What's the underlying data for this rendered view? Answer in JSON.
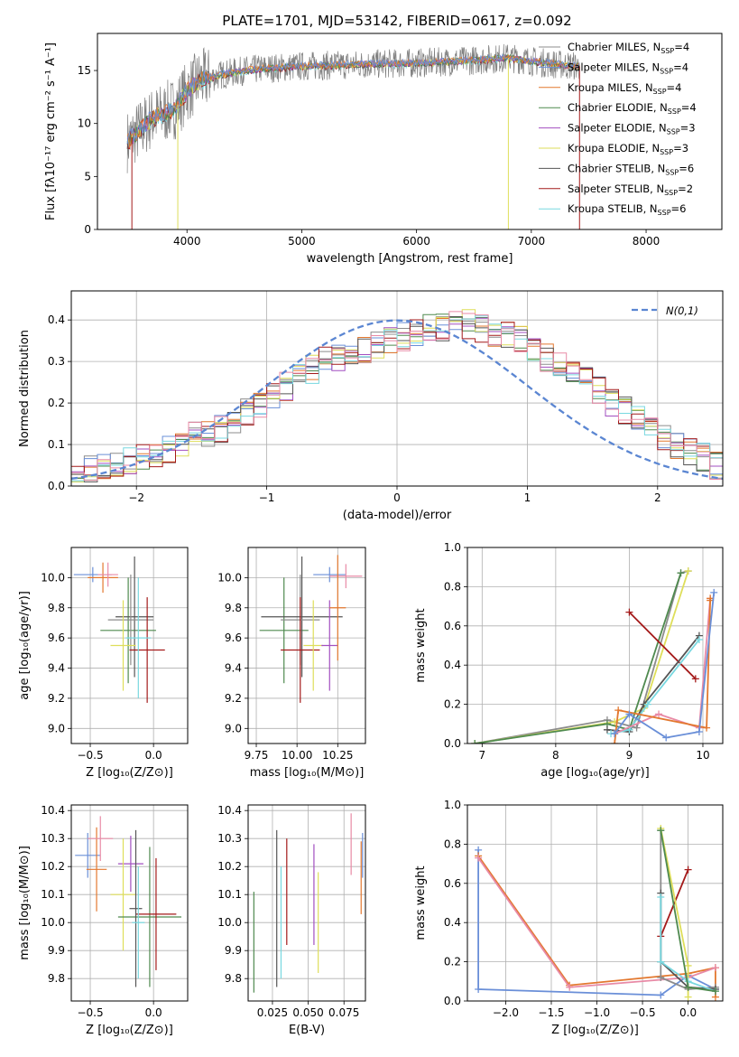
{
  "title": "PLATE=1701, MJD=53142, FIBERID=0617, z=0.092",
  "colors": {
    "chabrier_miles": "#8c8c8c",
    "salpeter_miles": "#6a8fd8",
    "kroupa_miles": "#e3782f",
    "chabrier_elodie": "#4f8a4f",
    "salpeter_elodie": "#a24fc0",
    "kroupa_elodie": "#dede5a",
    "chabrier_stelib": "#555555",
    "salpeter_stelib": "#a41a1a",
    "kroupa_stelib": "#78d8e0",
    "gauss": "#5b86d2",
    "extra_pink": "#e88aa6",
    "extra_lightgreen": "#8fd46a"
  },
  "chart_data": [
    {
      "type": "line",
      "name": "spectrum",
      "xlabel": "wavelength [Angstrom, rest frame]",
      "ylabel": "Flux [fλ10⁻¹⁷ erg cm⁻² s⁻¹ A⁻¹]",
      "xlim": [
        3220,
        8660
      ],
      "ylim": [
        0,
        18.5
      ],
      "xticks": [
        4000,
        5000,
        6000,
        7000,
        8000
      ],
      "yticks": [
        0,
        5,
        10,
        15
      ],
      "grid": false,
      "legend": "upper-right",
      "legend_entries": [
        {
          "label": "Chabrier MILES, N",
          "sub": "SSP",
          "suffix": "=4",
          "color": "chabrier_miles"
        },
        {
          "label": "Salpeter MILES, N",
          "sub": "SSP",
          "suffix": "=4",
          "color": "salpeter_miles"
        },
        {
          "label": "Kroupa MILES, N",
          "sub": "SSP",
          "suffix": "=4",
          "color": "kroupa_miles"
        },
        {
          "label": "Chabrier ELODIE, N",
          "sub": "SSP",
          "suffix": "=4",
          "color": "chabrier_elodie"
        },
        {
          "label": "Salpeter ELODIE, N",
          "sub": "SSP",
          "suffix": "=3",
          "color": "salpeter_elodie"
        },
        {
          "label": "Kroupa ELODIE, N",
          "sub": "SSP",
          "suffix": "=3",
          "color": "kroupa_elodie"
        },
        {
          "label": "Chabrier STELIB, N",
          "sub": "SSP",
          "suffix": "=6",
          "color": "chabrier_stelib"
        },
        {
          "label": "Salpeter STELIB, N",
          "sub": "SSP",
          "suffix": "=2",
          "color": "salpeter_stelib"
        },
        {
          "label": "Kroupa STELIB, N",
          "sub": "SSP",
          "suffix": "=6",
          "color": "kroupa_stelib"
        }
      ],
      "continuum_x": [
        3500,
        3700,
        3900,
        4000,
        4100,
        4300,
        4500,
        4700,
        5000,
        5300,
        5600,
        6000,
        6400,
        6800,
        7200,
        7420
      ],
      "continuum_y": [
        8.5,
        10.5,
        11.5,
        13.0,
        14.0,
        14.6,
        15.0,
        15.2,
        15.4,
        15.5,
        15.6,
        15.7,
        15.9,
        16.2,
        15.6,
        15.4
      ]
    },
    {
      "type": "histogram",
      "name": "residuals",
      "xlabel": "(data-model)/error",
      "ylabel": "Normed distribution",
      "xlim": [
        -2.5,
        2.5
      ],
      "ylim": [
        0,
        0.47
      ],
      "xticks": [
        -2,
        -1,
        0,
        1,
        2
      ],
      "yticks": [
        0.0,
        0.1,
        0.2,
        0.3,
        0.4
      ],
      "grid": true,
      "legend": "upper-right",
      "gauss_label": "N(0,1)",
      "bin_width": 0.1,
      "base": [
        0.03,
        0.04,
        0.045,
        0.05,
        0.06,
        0.07,
        0.08,
        0.09,
        0.1,
        0.12,
        0.13,
        0.14,
        0.16,
        0.18,
        0.2,
        0.22,
        0.24,
        0.26,
        0.28,
        0.3,
        0.31,
        0.32,
        0.33,
        0.34,
        0.35,
        0.36,
        0.37,
        0.38,
        0.38,
        0.39,
        0.39,
        0.38,
        0.37,
        0.36,
        0.35,
        0.33,
        0.31,
        0.29,
        0.27,
        0.25,
        0.23,
        0.2,
        0.18,
        0.16,
        0.14,
        0.12,
        0.1,
        0.08,
        0.07,
        0.05,
        0.04
      ]
    },
    {
      "type": "scatter",
      "name": "age-vs-metallicity",
      "xlabel": "Z [log₁₀(Z/Z⊙)]",
      "ylabel": "age  [log₁₀(age/yr)]",
      "xlim": [
        -0.65,
        0.27
      ],
      "ylim": [
        8.9,
        10.2
      ],
      "xticks": [
        -0.5,
        0.0
      ],
      "yticks": [
        9.0,
        9.2,
        9.4,
        9.6,
        9.8,
        10.0
      ],
      "grid": true,
      "points": [
        {
          "x": -0.48,
          "y": 10.02,
          "ex": 0.15,
          "ey": 0.05,
          "c": "salpeter_miles"
        },
        {
          "x": -0.4,
          "y": 10.0,
          "ex": 0.12,
          "ey": 0.1,
          "c": "kroupa_miles"
        },
        {
          "x": -0.36,
          "y": 10.02,
          "ex": 0.08,
          "ey": 0.08,
          "c": "extra_pink"
        },
        {
          "x": -0.2,
          "y": 9.65,
          "ex": 0.22,
          "ey": 0.35,
          "c": "chabrier_elodie"
        },
        {
          "x": -0.15,
          "y": 9.74,
          "ex": 0.15,
          "ey": 0.4,
          "c": "chabrier_stelib"
        },
        {
          "x": -0.18,
          "y": 9.72,
          "ex": 0.18,
          "ey": 0.3,
          "c": "chabrier_miles"
        },
        {
          "x": -0.05,
          "y": 9.52,
          "ex": 0.14,
          "ey": 0.35,
          "c": "salpeter_stelib"
        },
        {
          "x": -0.24,
          "y": 9.55,
          "ex": 0.1,
          "ey": 0.3,
          "c": "kroupa_elodie"
        },
        {
          "x": -0.12,
          "y": 9.6,
          "ex": 0.1,
          "ey": 0.4,
          "c": "kroupa_stelib"
        }
      ]
    },
    {
      "type": "scatter",
      "name": "age-vs-mass",
      "xlabel": "mass [log₁₀(M/M⊙)]",
      "ylabel": "",
      "xlim": [
        9.7,
        10.42
      ],
      "ylim": [
        8.9,
        10.2
      ],
      "xticks": [
        9.75,
        10.0,
        10.25
      ],
      "yticks": [
        9.0,
        9.2,
        9.4,
        9.6,
        9.8,
        10.0
      ],
      "grid": true,
      "points": [
        {
          "x": 10.2,
          "y": 10.02,
          "ex": 0.1,
          "ey": 0.05,
          "c": "salpeter_miles"
        },
        {
          "x": 10.3,
          "y": 10.01,
          "ex": 0.1,
          "ey": 0.08,
          "c": "extra_pink"
        },
        {
          "x": 9.92,
          "y": 9.65,
          "ex": 0.15,
          "ey": 0.35,
          "c": "chabrier_elodie"
        },
        {
          "x": 10.03,
          "y": 9.74,
          "ex": 0.25,
          "ey": 0.4,
          "c": "chabrier_stelib"
        },
        {
          "x": 10.02,
          "y": 9.72,
          "ex": 0.12,
          "ey": 0.3,
          "c": "chabrier_miles"
        },
        {
          "x": 10.02,
          "y": 9.52,
          "ex": 0.12,
          "ey": 0.35,
          "c": "salpeter_stelib"
        },
        {
          "x": 10.1,
          "y": 9.55,
          "ex": 0.06,
          "ey": 0.3,
          "c": "kroupa_elodie"
        },
        {
          "x": 10.2,
          "y": 9.55,
          "ex": 0.05,
          "ey": 0.3,
          "c": "salpeter_elodie"
        },
        {
          "x": 10.25,
          "y": 9.8,
          "ex": 0.05,
          "ey": 0.35,
          "c": "kroupa_miles"
        }
      ]
    },
    {
      "type": "line",
      "name": "mass-weight-vs-age",
      "xlabel": "age  [log₁₀(age/yr)]",
      "ylabel": "mass weight",
      "xlim": [
        6.8,
        10.27
      ],
      "ylim": [
        0,
        1.0
      ],
      "xticks": [
        7,
        8,
        9,
        10
      ],
      "yticks": [
        0.0,
        0.2,
        0.4,
        0.6,
        0.8,
        1.0
      ],
      "grid": true,
      "series": [
        {
          "c": "chabrier_miles",
          "x": [
            6.9,
            8.7,
            9.1,
            9.7,
            9.8
          ],
          "y": [
            0.0,
            0.12,
            0.08,
            0.87,
            0.88
          ]
        },
        {
          "c": "kroupa_elodie",
          "x": [
            6.9,
            8.8,
            9.2,
            9.8
          ],
          "y": [
            0.0,
            0.11,
            0.18,
            0.88
          ]
        },
        {
          "c": "chabrier_elodie",
          "x": [
            6.9,
            8.7,
            9.0,
            9.7
          ],
          "y": [
            0.0,
            0.1,
            0.07,
            0.87
          ]
        },
        {
          "c": "salpeter_stelib",
          "x": [
            9.0,
            9.9
          ],
          "y": [
            0.67,
            0.33
          ]
        },
        {
          "c": "chabrier_stelib",
          "x": [
            8.7,
            9.0,
            9.2,
            9.95
          ],
          "y": [
            0.07,
            0.06,
            0.2,
            0.55
          ]
        },
        {
          "c": "kroupa_stelib",
          "x": [
            8.75,
            9.0,
            9.25,
            9.95
          ],
          "y": [
            0.05,
            0.07,
            0.2,
            0.53
          ]
        },
        {
          "c": "extra_pink",
          "x": [
            8.8,
            9.4,
            9.95,
            10.1
          ],
          "y": [
            0.05,
            0.15,
            0.08,
            0.74
          ]
        },
        {
          "c": "kroupa_miles",
          "x": [
            8.8,
            8.85,
            10.05,
            10.1,
            10.1
          ],
          "y": [
            0.0,
            0.17,
            0.08,
            0.73,
            0.74
          ]
        },
        {
          "c": "salpeter_miles",
          "x": [
            8.8,
            9.0,
            9.5,
            9.95,
            10.15
          ],
          "y": [
            0.05,
            0.15,
            0.03,
            0.06,
            0.77
          ]
        }
      ]
    },
    {
      "type": "scatter",
      "name": "mass-vs-metallicity",
      "xlabel": "Z [log₁₀(Z/Z⊙)]",
      "ylabel": "mass [log₁₀(M/M⊙)]",
      "xlim": [
        -0.65,
        0.27
      ],
      "ylim": [
        9.72,
        10.42
      ],
      "xticks": [
        -0.5,
        0.0
      ],
      "yticks": [
        9.8,
        9.9,
        10.0,
        10.1,
        10.2,
        10.3,
        10.4
      ],
      "grid": true,
      "points": [
        {
          "x": -0.52,
          "y": 10.24,
          "ex": 0.1,
          "ey": 0.08,
          "c": "salpeter_miles"
        },
        {
          "x": -0.45,
          "y": 10.19,
          "ex": 0.08,
          "ey": 0.15,
          "c": "kroupa_miles"
        },
        {
          "x": -0.42,
          "y": 10.3,
          "ex": 0.1,
          "ey": 0.08,
          "c": "extra_pink"
        },
        {
          "x": -0.18,
          "y": 10.21,
          "ex": 0.1,
          "ey": 0.1,
          "c": "salpeter_elodie"
        },
        {
          "x": -0.24,
          "y": 10.1,
          "ex": 0.1,
          "ey": 0.2,
          "c": "kroupa_elodie"
        },
        {
          "x": -0.03,
          "y": 10.02,
          "ex": 0.25,
          "ey": 0.25,
          "c": "chabrier_elodie"
        },
        {
          "x": 0.02,
          "y": 10.03,
          "ex": 0.16,
          "ey": 0.2,
          "c": "salpeter_stelib"
        },
        {
          "x": -0.14,
          "y": 10.05,
          "ex": 0.05,
          "ey": 0.28,
          "c": "chabrier_stelib"
        },
        {
          "x": -0.12,
          "y": 10.0,
          "ex": 0.05,
          "ey": 0.2,
          "c": "kroupa_stelib"
        }
      ]
    },
    {
      "type": "scatter",
      "name": "mass-vs-extinction",
      "xlabel": "E(B-V)",
      "ylabel": "",
      "xlim": [
        0.008,
        0.09
      ],
      "ylim": [
        9.72,
        10.42
      ],
      "xticks": [
        0.025,
        0.05,
        0.075
      ],
      "xticklabels": [
        "0.025",
        "0.050",
        "0.075"
      ],
      "yticks": [
        9.8,
        9.9,
        10.0,
        10.1,
        10.2,
        10.3,
        10.4
      ],
      "grid": true,
      "points": [
        {
          "x": 0.012,
          "y": 9.93,
          "ey": 0.18,
          "c": "chabrier_elodie"
        },
        {
          "x": 0.028,
          "y": 10.05,
          "ey": 0.28,
          "c": "chabrier_stelib"
        },
        {
          "x": 0.031,
          "y": 10.0,
          "ey": 0.2,
          "c": "kroupa_stelib"
        },
        {
          "x": 0.035,
          "y": 10.11,
          "ey": 0.19,
          "c": "salpeter_stelib"
        },
        {
          "x": 0.054,
          "y": 10.1,
          "ey": 0.18,
          "c": "salpeter_elodie"
        },
        {
          "x": 0.057,
          "y": 10.0,
          "ey": 0.18,
          "c": "kroupa_elodie"
        },
        {
          "x": 0.08,
          "y": 10.28,
          "ey": 0.11,
          "c": "extra_pink"
        },
        {
          "x": 0.087,
          "y": 10.16,
          "ey": 0.13,
          "c": "kroupa_miles"
        },
        {
          "x": 0.088,
          "y": 10.24,
          "ey": 0.08,
          "c": "salpeter_miles"
        }
      ]
    },
    {
      "type": "line",
      "name": "mass-weight-vs-metallicity",
      "xlabel": "Z [log₁₀(Z/Z⊙)]",
      "ylabel": "mass weight",
      "xlim": [
        -2.42,
        0.38
      ],
      "ylim": [
        0,
        1.0
      ],
      "xticks": [
        -2.0,
        -1.5,
        -1.0,
        -0.5,
        0.0
      ],
      "yticks": [
        0.0,
        0.2,
        0.4,
        0.6,
        0.8,
        1.0
      ],
      "grid": true,
      "series": [
        {
          "c": "salpeter_miles",
          "x": [
            -2.3,
            -2.3,
            -0.3,
            0.0,
            0.3
          ],
          "y": [
            0.77,
            0.06,
            0.03,
            0.13,
            0.06
          ]
        },
        {
          "c": "kroupa_miles",
          "x": [
            -2.3,
            -1.3,
            0.0,
            0.3,
            0.3
          ],
          "y": [
            0.74,
            0.08,
            0.14,
            0.17,
            0.02
          ]
        },
        {
          "c": "extra_pink",
          "x": [
            -2.3,
            -1.3,
            0.0,
            0.3
          ],
          "y": [
            0.73,
            0.07,
            0.12,
            0.17
          ]
        },
        {
          "c": "salpeter_stelib",
          "x": [
            -0.3,
            0.0
          ],
          "y": [
            0.33,
            0.67
          ]
        },
        {
          "c": "chabrier_miles",
          "x": [
            -0.3,
            -0.3,
            0.0,
            0.3
          ],
          "y": [
            0.87,
            0.12,
            0.06,
            0.07
          ]
        },
        {
          "c": "kroupa_elodie",
          "x": [
            -0.3,
            0.0,
            0.0
          ],
          "y": [
            0.88,
            0.18,
            0.02
          ]
        },
        {
          "c": "chabrier_stelib",
          "x": [
            -0.3,
            -0.3,
            0.0,
            0.3
          ],
          "y": [
            0.55,
            0.2,
            0.07,
            0.06
          ]
        },
        {
          "c": "kroupa_stelib",
          "x": [
            -0.3,
            -0.3,
            0.0,
            0.3
          ],
          "y": [
            0.53,
            0.2,
            0.1,
            0.05
          ]
        },
        {
          "c": "chabrier_elodie",
          "x": [
            -0.3,
            0.0,
            0.3
          ],
          "y": [
            0.87,
            0.07,
            0.05
          ]
        }
      ]
    }
  ]
}
